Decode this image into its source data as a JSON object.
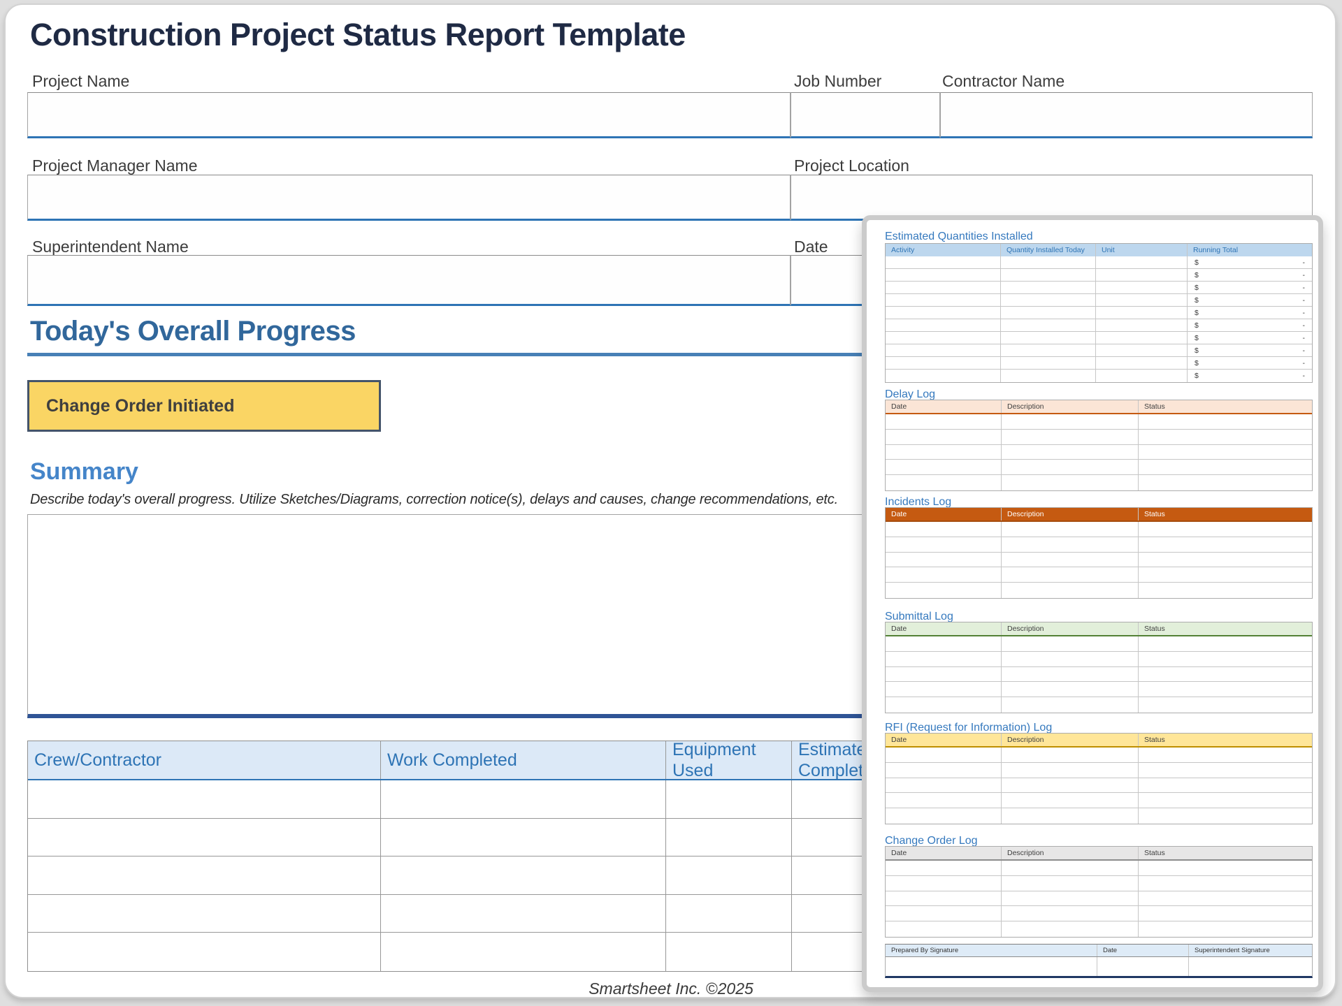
{
  "page": {
    "title": "Construction Project Status Report Template",
    "footer": "Smartsheet Inc. ©2025"
  },
  "form": {
    "fields": [
      {
        "id": "project_name",
        "label": "Project Name",
        "value": ""
      },
      {
        "id": "job_number",
        "label": "Job Number",
        "value": ""
      },
      {
        "id": "contractor_name",
        "label": "Contractor Name",
        "value": ""
      },
      {
        "id": "project_manager_name",
        "label": "Project Manager Name",
        "value": ""
      },
      {
        "id": "project_location",
        "label": "Project Location",
        "value": ""
      },
      {
        "id": "superintendent_name",
        "label": "Superintendent Name",
        "value": ""
      },
      {
        "id": "date",
        "label": "Date",
        "value": ""
      }
    ]
  },
  "progress": {
    "heading": "Today's Overall Progress",
    "change_order_label": "Change Order Initiated",
    "change_order_bg": "#fad564",
    "summary_heading": "Summary",
    "summary_hint": "Describe today's overall progress.  Utilize Sketches/Diagrams, correction notice(s), delays and causes, change recommendations, etc.",
    "summary_value": ""
  },
  "crew_table": {
    "columns": [
      "Crew/Contractor",
      "Work Completed",
      "Equipment Used",
      "Estimated Completion"
    ],
    "row_count": 5
  },
  "panel": {
    "quantities": {
      "title": "Estimated Quantities Installed",
      "columns": [
        "Activity",
        "Quantity Installed Today",
        "Unit",
        "Running Total"
      ],
      "row_count": 10,
      "currency_symbol": "$",
      "empty_value": "-",
      "header_bg": "#bdd7ee",
      "header_text_color": "#2e74b5"
    },
    "logs": [
      {
        "id": "delay",
        "title": "Delay Log",
        "columns": [
          "Date",
          "Description",
          "Status"
        ],
        "row_count": 5,
        "header_bg": "#fbe5d6",
        "header_text_color": "#404040",
        "accent": "#c55a11"
      },
      {
        "id": "incidents",
        "title": "Incidents Log",
        "columns": [
          "Date",
          "Description",
          "Status"
        ],
        "row_count": 5,
        "header_bg": "#c55a11",
        "header_text_color": "#ffffff",
        "accent": "#a64d0e"
      },
      {
        "id": "submittal",
        "title": "Submittal Log",
        "columns": [
          "Date",
          "Description",
          "Status"
        ],
        "row_count": 5,
        "header_bg": "#e2efda",
        "header_text_color": "#404040",
        "accent": "#538135"
      },
      {
        "id": "rfi",
        "title": "RFI (Request for Information) Log",
        "columns": [
          "Date",
          "Description",
          "Status"
        ],
        "row_count": 5,
        "header_bg": "#ffe699",
        "header_text_color": "#404040",
        "accent": "#bf8f00"
      },
      {
        "id": "change_order",
        "title": "Change Order Log",
        "columns": [
          "Date",
          "Description",
          "Status"
        ],
        "row_count": 5,
        "header_bg": "#e7e6e6",
        "header_text_color": "#404040",
        "accent": "#8c8c8c"
      }
    ],
    "signature": {
      "columns": [
        "Prepared By Signature",
        "Date",
        "Superintendent Signature"
      ],
      "row_count": 1,
      "header_bg": "#deebf7",
      "header_text_color": "#333333",
      "accent": "#203864"
    }
  }
}
